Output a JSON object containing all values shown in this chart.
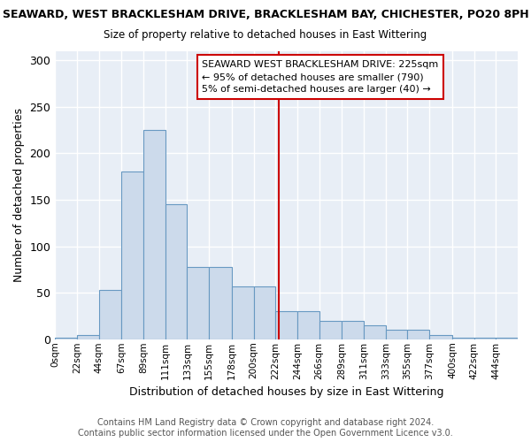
{
  "title1": "SEAWARD, WEST BRACKLESHAM DRIVE, BRACKLESHAM BAY, CHICHESTER, PO20 8PH",
  "title2": "Size of property relative to detached houses in East Wittering",
  "xlabel": "Distribution of detached houses by size in East Wittering",
  "ylabel": "Number of detached properties",
  "footer": "Contains HM Land Registry data © Crown copyright and database right 2024.\nContains public sector information licensed under the Open Government Licence v3.0.",
  "bar_values": [
    2,
    5,
    53,
    180,
    225,
    145,
    78,
    78,
    57,
    57,
    30,
    30,
    20,
    20,
    15,
    10,
    10,
    5,
    2,
    2,
    2
  ],
  "bin_edges": [
    0,
    22,
    44,
    67,
    89,
    111,
    133,
    155,
    178,
    200,
    222,
    244,
    266,
    289,
    311,
    333,
    355,
    377,
    400,
    422,
    444,
    466
  ],
  "tick_labels": [
    "0sqm",
    "22sqm",
    "44sqm",
    "67sqm",
    "89sqm",
    "111sqm",
    "133sqm",
    "155sqm",
    "178sqm",
    "200sqm",
    "222sqm",
    "244sqm",
    "266sqm",
    "289sqm",
    "311sqm",
    "333sqm",
    "355sqm",
    "377sqm",
    "400sqm",
    "422sqm",
    "444sqm"
  ],
  "bar_color": "#ccdaeb",
  "bar_edge_color": "#6899c2",
  "bg_color": "#ffffff",
  "plot_bg_color": "#e8eef6",
  "grid_color": "#ffffff",
  "red_line_x": 225,
  "annotation_text": "SEAWARD WEST BRACKLESHAM DRIVE: 225sqm\n← 95% of detached houses are smaller (790)\n5% of semi-detached houses are larger (40) →",
  "annotation_box_color": "#ffffff",
  "annotation_border_color": "#cc0000",
  "ylim": [
    0,
    310
  ],
  "yticks": [
    0,
    50,
    100,
    150,
    200,
    250,
    300
  ]
}
